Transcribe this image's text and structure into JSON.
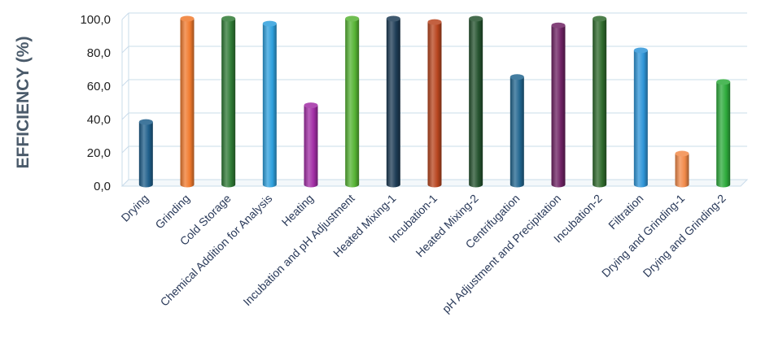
{
  "chart_data": {
    "type": "bar",
    "title": "",
    "xlabel": "",
    "ylabel": "EFFICIENCY (%)",
    "ylim": [
      0,
      100
    ],
    "yticks": [
      "0,0",
      "20,0",
      "40,0",
      "60,0",
      "80,0",
      "100,0"
    ],
    "grid": true,
    "categories": [
      "Drying",
      "Grinding",
      "Cold Storage",
      "Chemical Addition for Analysis",
      "Heating",
      "Incubation and pH Adjustment",
      "Heated Mixing-1",
      "Incubation-1",
      "Heated Mixing-2",
      "Centrifugation",
      "pH Adjustment and Precipitation",
      "Incubation-2",
      "Filtration",
      "Drying and Grinding-1",
      "Drying and Grinding-2"
    ],
    "values": [
      38,
      100,
      100,
      97,
      48,
      100,
      100,
      98,
      100,
      65,
      96,
      100,
      81,
      19,
      62
    ],
    "colors": [
      "#1f5f8b",
      "#f07a2e",
      "#2f7a35",
      "#2fa0dd",
      "#a22ea6",
      "#56b334",
      "#1d3c55",
      "#b8451f",
      "#25532f",
      "#22668f",
      "#6e2263",
      "#2f6a2c",
      "#2f95d8",
      "#f28a4a",
      "#2eab3c"
    ]
  }
}
